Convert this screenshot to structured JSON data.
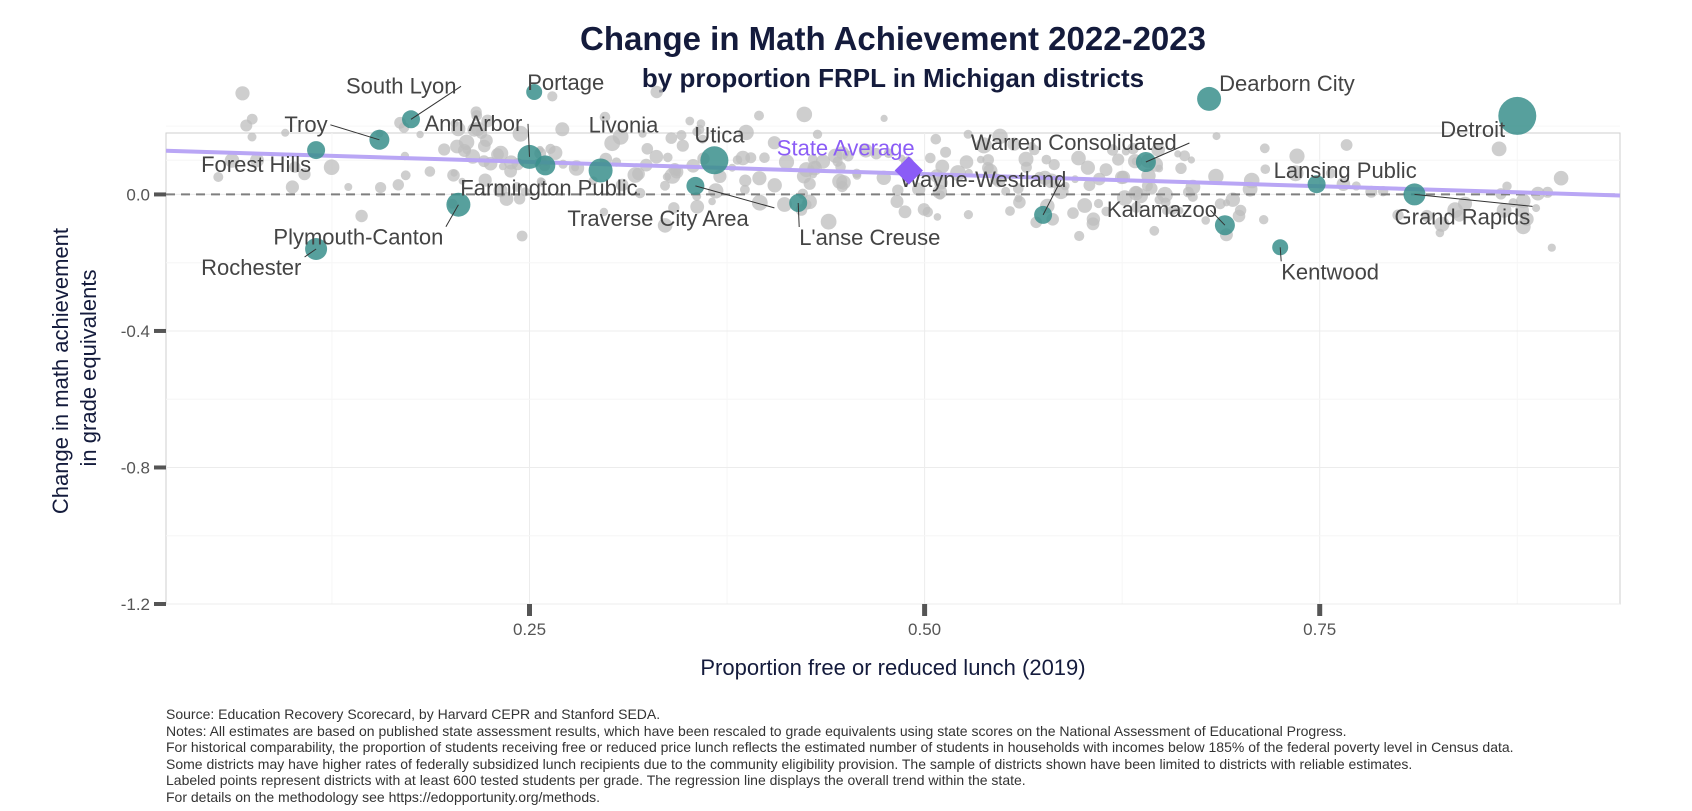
{
  "chart_data": {
    "type": "scatter",
    "title": "Change in Math Achievement 2022-2023",
    "subtitle": "by proportion FRPL in Michigan districts",
    "xlabel": "Proportion free or reduced lunch (2019)",
    "ylabel_lines": [
      "Change in math achievement",
      "in grade equivalents"
    ],
    "xlim": [
      0.02,
      0.94
    ],
    "ylim": [
      -1.2,
      0.18
    ],
    "x_ticks": [
      0.25,
      0.5,
      0.75
    ],
    "x_tick_labels": [
      "0.25",
      "0.50",
      "0.75"
    ],
    "y_ticks": [
      0.0,
      -0.4,
      -0.8,
      -1.2
    ],
    "y_tick_labels": [
      "0.0",
      "-0.4",
      "-0.8",
      "-1.2"
    ],
    "grid": true,
    "zero_reference_line": true,
    "regression_line": {
      "x": [
        0.02,
        0.94
      ],
      "y": [
        0.128,
        -0.003
      ]
    },
    "state_average": {
      "label": "State Average",
      "x": 0.49,
      "y": 0.07
    },
    "colors": {
      "labeled_district": "#3a8f8c",
      "other_district": "#bdbdbd",
      "state_average": "#8b5cf6",
      "regression_line": "#b9a6f5",
      "reference_line": "#7f7f7f",
      "title": "#141b3c"
    },
    "labeled_districts": [
      {
        "name": "Troy",
        "x": 0.155,
        "y": 0.16,
        "r": 10
      },
      {
        "name": "South Lyon",
        "x": 0.175,
        "y": 0.22,
        "r": 9
      },
      {
        "name": "Forest Hills",
        "x": 0.115,
        "y": 0.13,
        "r": 9
      },
      {
        "name": "Rochester",
        "x": 0.115,
        "y": -0.16,
        "r": 11
      },
      {
        "name": "Plymouth-Canton",
        "x": 0.205,
        "y": -0.03,
        "r": 12
      },
      {
        "name": "Ann Arbor",
        "x": 0.25,
        "y": 0.11,
        "r": 12
      },
      {
        "name": "Portage",
        "x": 0.253,
        "y": 0.3,
        "r": 8
      },
      {
        "name": "Farmington Public",
        "x": 0.26,
        "y": 0.085,
        "r": 10
      },
      {
        "name": "Livonia",
        "x": 0.295,
        "y": 0.07,
        "r": 12
      },
      {
        "name": "Utica",
        "x": 0.367,
        "y": 0.1,
        "r": 14
      },
      {
        "name": "Traverse City Area",
        "x": 0.355,
        "y": 0.025,
        "r": 9
      },
      {
        "name": "L'anse Creuse",
        "x": 0.42,
        "y": -0.025,
        "r": 9
      },
      {
        "name": "Wayne-Westland",
        "x": 0.575,
        "y": -0.06,
        "r": 9
      },
      {
        "name": "Warren Consolidated",
        "x": 0.64,
        "y": 0.095,
        "r": 10
      },
      {
        "name": "Dearborn City",
        "x": 0.68,
        "y": 0.28,
        "r": 12
      },
      {
        "name": "Kalamazoo",
        "x": 0.69,
        "y": -0.09,
        "r": 10
      },
      {
        "name": "Kentwood",
        "x": 0.725,
        "y": -0.155,
        "r": 8
      },
      {
        "name": "Lansing Public",
        "x": 0.748,
        "y": 0.03,
        "r": 9
      },
      {
        "name": "Grand Rapids",
        "x": 0.81,
        "y": 0.0,
        "r": 11
      },
      {
        "name": "Detroit",
        "x": 0.875,
        "y": 0.23,
        "r": 19
      }
    ],
    "other_districts_shown": 300
  },
  "notes": [
    "Source: Education Recovery Scorecard, by Harvard CEPR and Stanford SEDA.",
    "Notes: All estimates are based on published state assessment results, which have been rescaled to grade equivalents using state scores on the National Assessment of Educational Progress.",
    "For historical comparability, the proportion of students receiving free or reduced price lunch reflects the estimated number of students in households with incomes below 185% of the federal poverty level in Census data.",
    "Some districts may have higher rates of federally subsidized lunch recipients due to the community eligibility provision. The sample of districts shown have been limited to districts with reliable estimates.",
    "Labeled points represent districts with at least 600 tested students per grade. The regression line displays the overall trend within the state.",
    "For details on the methodology see https://edopportunity.org/methods."
  ]
}
